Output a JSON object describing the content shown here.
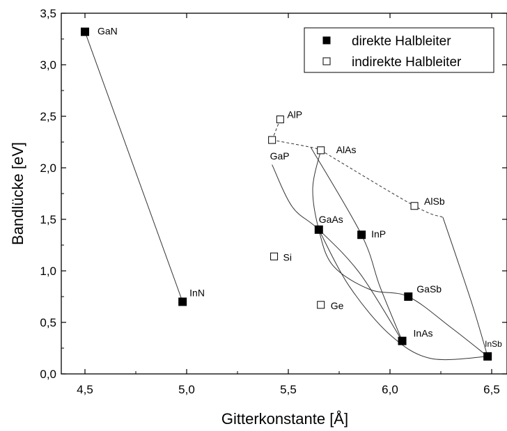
{
  "chart_data": {
    "type": "scatter",
    "xlabel": "Gitterkonstante [Å]",
    "ylabel": "Bandlücke [eV]",
    "xlim": [
      4.3,
      6.55
    ],
    "ylim": [
      0.0,
      3.5
    ],
    "x_ticks": [
      "4,5",
      "5,0",
      "5,5",
      "6,0",
      "6,5"
    ],
    "y_ticks": [
      "0,0",
      "0,5",
      "1,0",
      "1,5",
      "2,0",
      "2,5",
      "3,0",
      "3,5"
    ],
    "legend": {
      "placement": "top-right",
      "entries": [
        {
          "label": "direkte Halbleiter",
          "marker": "filled-square"
        },
        {
          "label": "indirekte Halbleiter",
          "marker": "open-square"
        }
      ]
    },
    "series": [
      {
        "name": "direkte Halbleiter",
        "points": [
          {
            "label": "GaN",
            "x": 4.5,
            "y": 3.32
          },
          {
            "label": "InN",
            "x": 4.98,
            "y": 0.7
          },
          {
            "label": "GaAs",
            "x": 5.65,
            "y": 1.4
          },
          {
            "label": "InP",
            "x": 5.86,
            "y": 1.35
          },
          {
            "label": "GaSb",
            "x": 6.09,
            "y": 0.75
          },
          {
            "label": "InAs",
            "x": 6.06,
            "y": 0.32
          },
          {
            "label": "InSb",
            "x": 6.48,
            "y": 0.17
          }
        ]
      },
      {
        "name": "indirekte Halbleiter",
        "points": [
          {
            "label": "AlP",
            "x": 5.46,
            "y": 2.47
          },
          {
            "label": "GaP",
            "x": 5.42,
            "y": 2.27
          },
          {
            "label": "AlAs",
            "x": 5.66,
            "y": 2.17
          },
          {
            "label": "AlSb",
            "x": 6.12,
            "y": 1.63
          },
          {
            "label": "Si",
            "x": 5.43,
            "y": 1.14
          },
          {
            "label": "Ge",
            "x": 5.66,
            "y": 0.67
          }
        ]
      }
    ],
    "curves": [
      {
        "style": "solid",
        "points": [
          [
            4.5,
            3.32
          ],
          [
            4.98,
            0.7
          ]
        ]
      },
      {
        "style": "dashed",
        "points": [
          [
            5.46,
            2.47
          ],
          [
            5.42,
            2.27
          ]
        ]
      },
      {
        "style": "dashed",
        "points": [
          [
            5.42,
            2.27
          ],
          [
            5.61,
            2.2
          ],
          [
            5.66,
            2.17
          ]
        ]
      },
      {
        "style": "dashed",
        "points": [
          [
            5.66,
            2.17
          ],
          [
            6.12,
            1.63
          ],
          [
            6.26,
            1.52
          ]
        ]
      },
      {
        "style": "solid",
        "points": [
          [
            5.42,
            2.03
          ],
          [
            5.52,
            1.62
          ],
          [
            5.65,
            1.4
          ],
          [
            5.85,
            0.98
          ],
          [
            6.06,
            0.32
          ]
        ]
      },
      {
        "style": "solid",
        "points": [
          [
            5.66,
            2.17
          ],
          [
            5.62,
            1.8
          ],
          [
            5.65,
            1.4
          ],
          [
            5.72,
            1.05
          ],
          [
            5.9,
            0.82
          ],
          [
            6.09,
            0.75
          ],
          [
            6.3,
            0.45
          ],
          [
            6.48,
            0.17
          ]
        ]
      },
      {
        "style": "solid",
        "points": [
          [
            5.61,
            2.2
          ],
          [
            5.86,
            1.35
          ],
          [
            5.95,
            0.85
          ],
          [
            6.06,
            0.32
          ]
        ]
      },
      {
        "style": "solid",
        "points": [
          [
            5.65,
            1.4
          ],
          [
            5.8,
            0.85
          ],
          [
            6.0,
            0.38
          ],
          [
            6.2,
            0.15
          ],
          [
            6.48,
            0.17
          ]
        ]
      },
      {
        "style": "solid",
        "points": [
          [
            6.26,
            1.52
          ],
          [
            6.4,
            0.7
          ],
          [
            6.48,
            0.17
          ]
        ]
      }
    ]
  }
}
